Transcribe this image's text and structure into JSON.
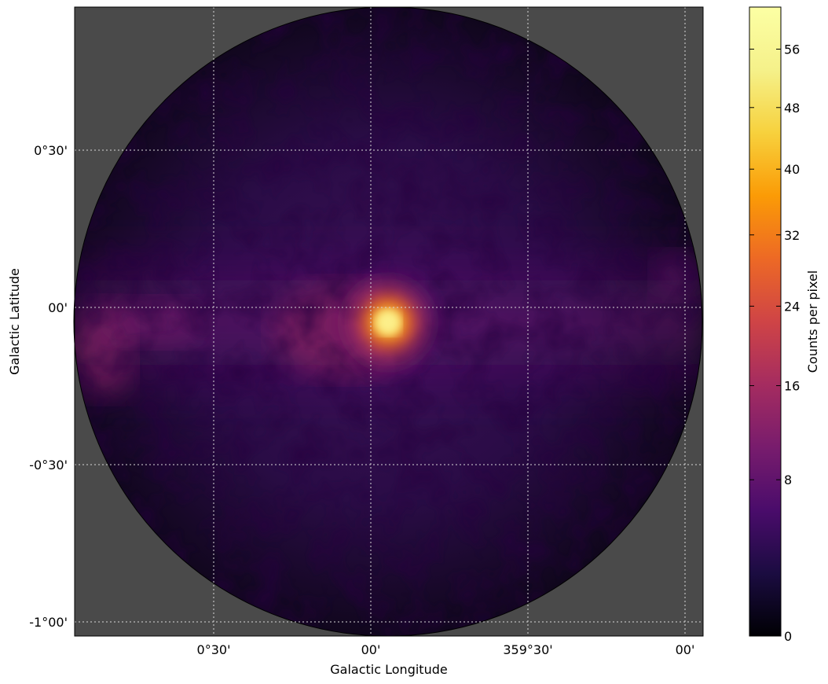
{
  "chart_data": {
    "type": "heatmap",
    "title": "",
    "xlabel": "Galactic Longitude",
    "ylabel": "Galactic Latitude",
    "x_ticks": [
      "0°30'",
      "00'",
      "359°30'",
      "00'"
    ],
    "y_ticks": [
      "0°30'",
      "00'",
      "-0°30'",
      "-1°00'"
    ],
    "grid": true,
    "colormap": "inferno",
    "colorbar": {
      "label": "Counts per pixel",
      "min": 0,
      "max": 62,
      "ticks": [
        "0",
        "8",
        "16",
        "24",
        "32",
        "40",
        "48",
        "56"
      ]
    },
    "peak": {
      "value": 58,
      "longitude_deg": -0.05,
      "latitude_deg": -0.05
    },
    "field_of_view": "circular",
    "background_color": "#4a4a4a"
  }
}
